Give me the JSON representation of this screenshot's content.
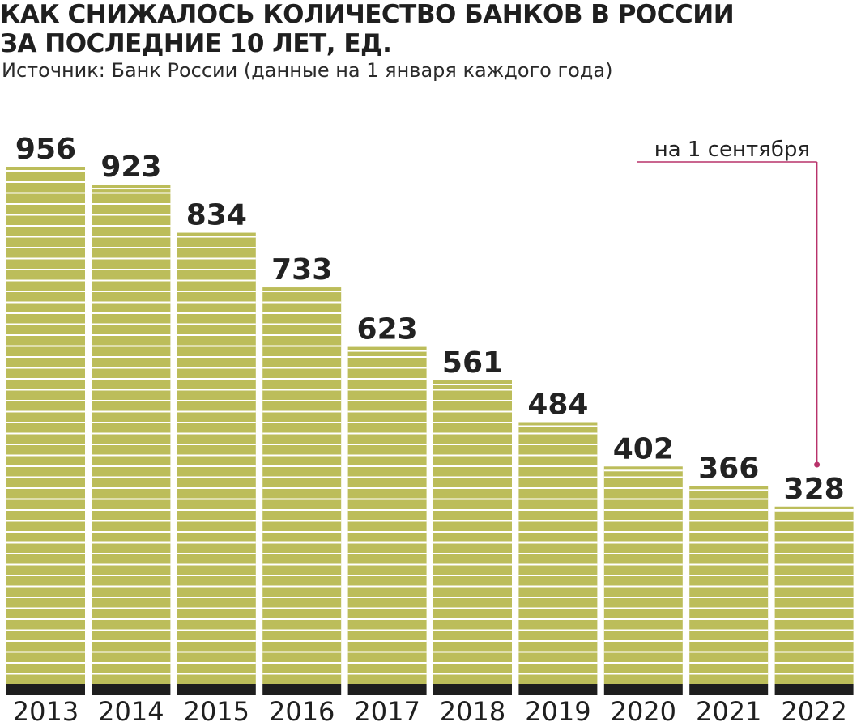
{
  "header": {
    "title_line1": "КАК СНИЖАЛОСЬ КОЛИЧЕСТВО БАНКОВ В РОССИИ",
    "title_line2": "ЗА ПОСЛЕДНИЕ 10 ЛЕТ, ЕД.",
    "subtitle": "Источник: Банк России (данные на 1 января каждого года)"
  },
  "annotation": {
    "text": "на 1 сентября",
    "target_category": "2022"
  },
  "colors": {
    "bar": "#bcbd5a",
    "bar_stripe": "#ffffff",
    "base": "#1e1e1e",
    "annotation": "#b8326a",
    "text": "#222222"
  },
  "chart_data": {
    "type": "bar",
    "title": "КАК СНИЖАЛОСЬ КОЛИЧЕСТВО БАНКОВ В РОССИИ ЗА ПОСЛЕДНИЕ 10 ЛЕТ, ЕД.",
    "xlabel": "",
    "ylabel": "",
    "categories": [
      "2013",
      "2014",
      "2015",
      "2016",
      "2017",
      "2018",
      "2019",
      "2020",
      "2021",
      "2022"
    ],
    "values": [
      956,
      923,
      834,
      733,
      623,
      561,
      484,
      402,
      366,
      328
    ],
    "grid": false,
    "legend": "none"
  }
}
